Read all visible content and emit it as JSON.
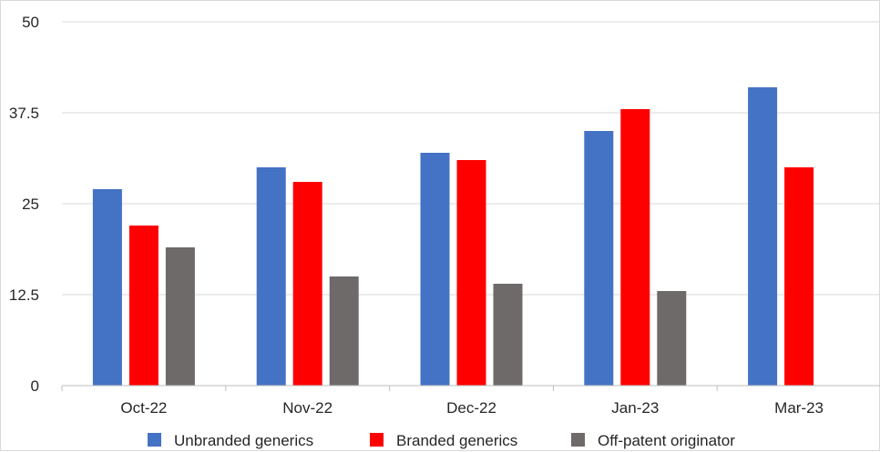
{
  "chart_data": {
    "type": "bar",
    "title": "",
    "xlabel": "",
    "ylabel": "",
    "categories": [
      "Oct-22",
      "Nov-22",
      "Dec-22",
      "Jan-23",
      "Mar-23"
    ],
    "series": [
      {
        "name": "Unbranded generics",
        "color": "#4472C4",
        "values": [
          27,
          30,
          32,
          35,
          41
        ]
      },
      {
        "name": "Branded generics",
        "color": "#FF0000",
        "values": [
          22,
          28,
          31,
          38,
          30
        ]
      },
      {
        "name": "Off-patent originator",
        "color": "#6E6A69",
        "values": [
          19,
          15,
          14,
          13,
          null
        ]
      }
    ],
    "ylim": [
      0,
      50
    ],
    "yticks": [
      "0",
      "12.5",
      "25",
      "37.5",
      "50"
    ],
    "grid": true,
    "legend_position": "bottom"
  }
}
